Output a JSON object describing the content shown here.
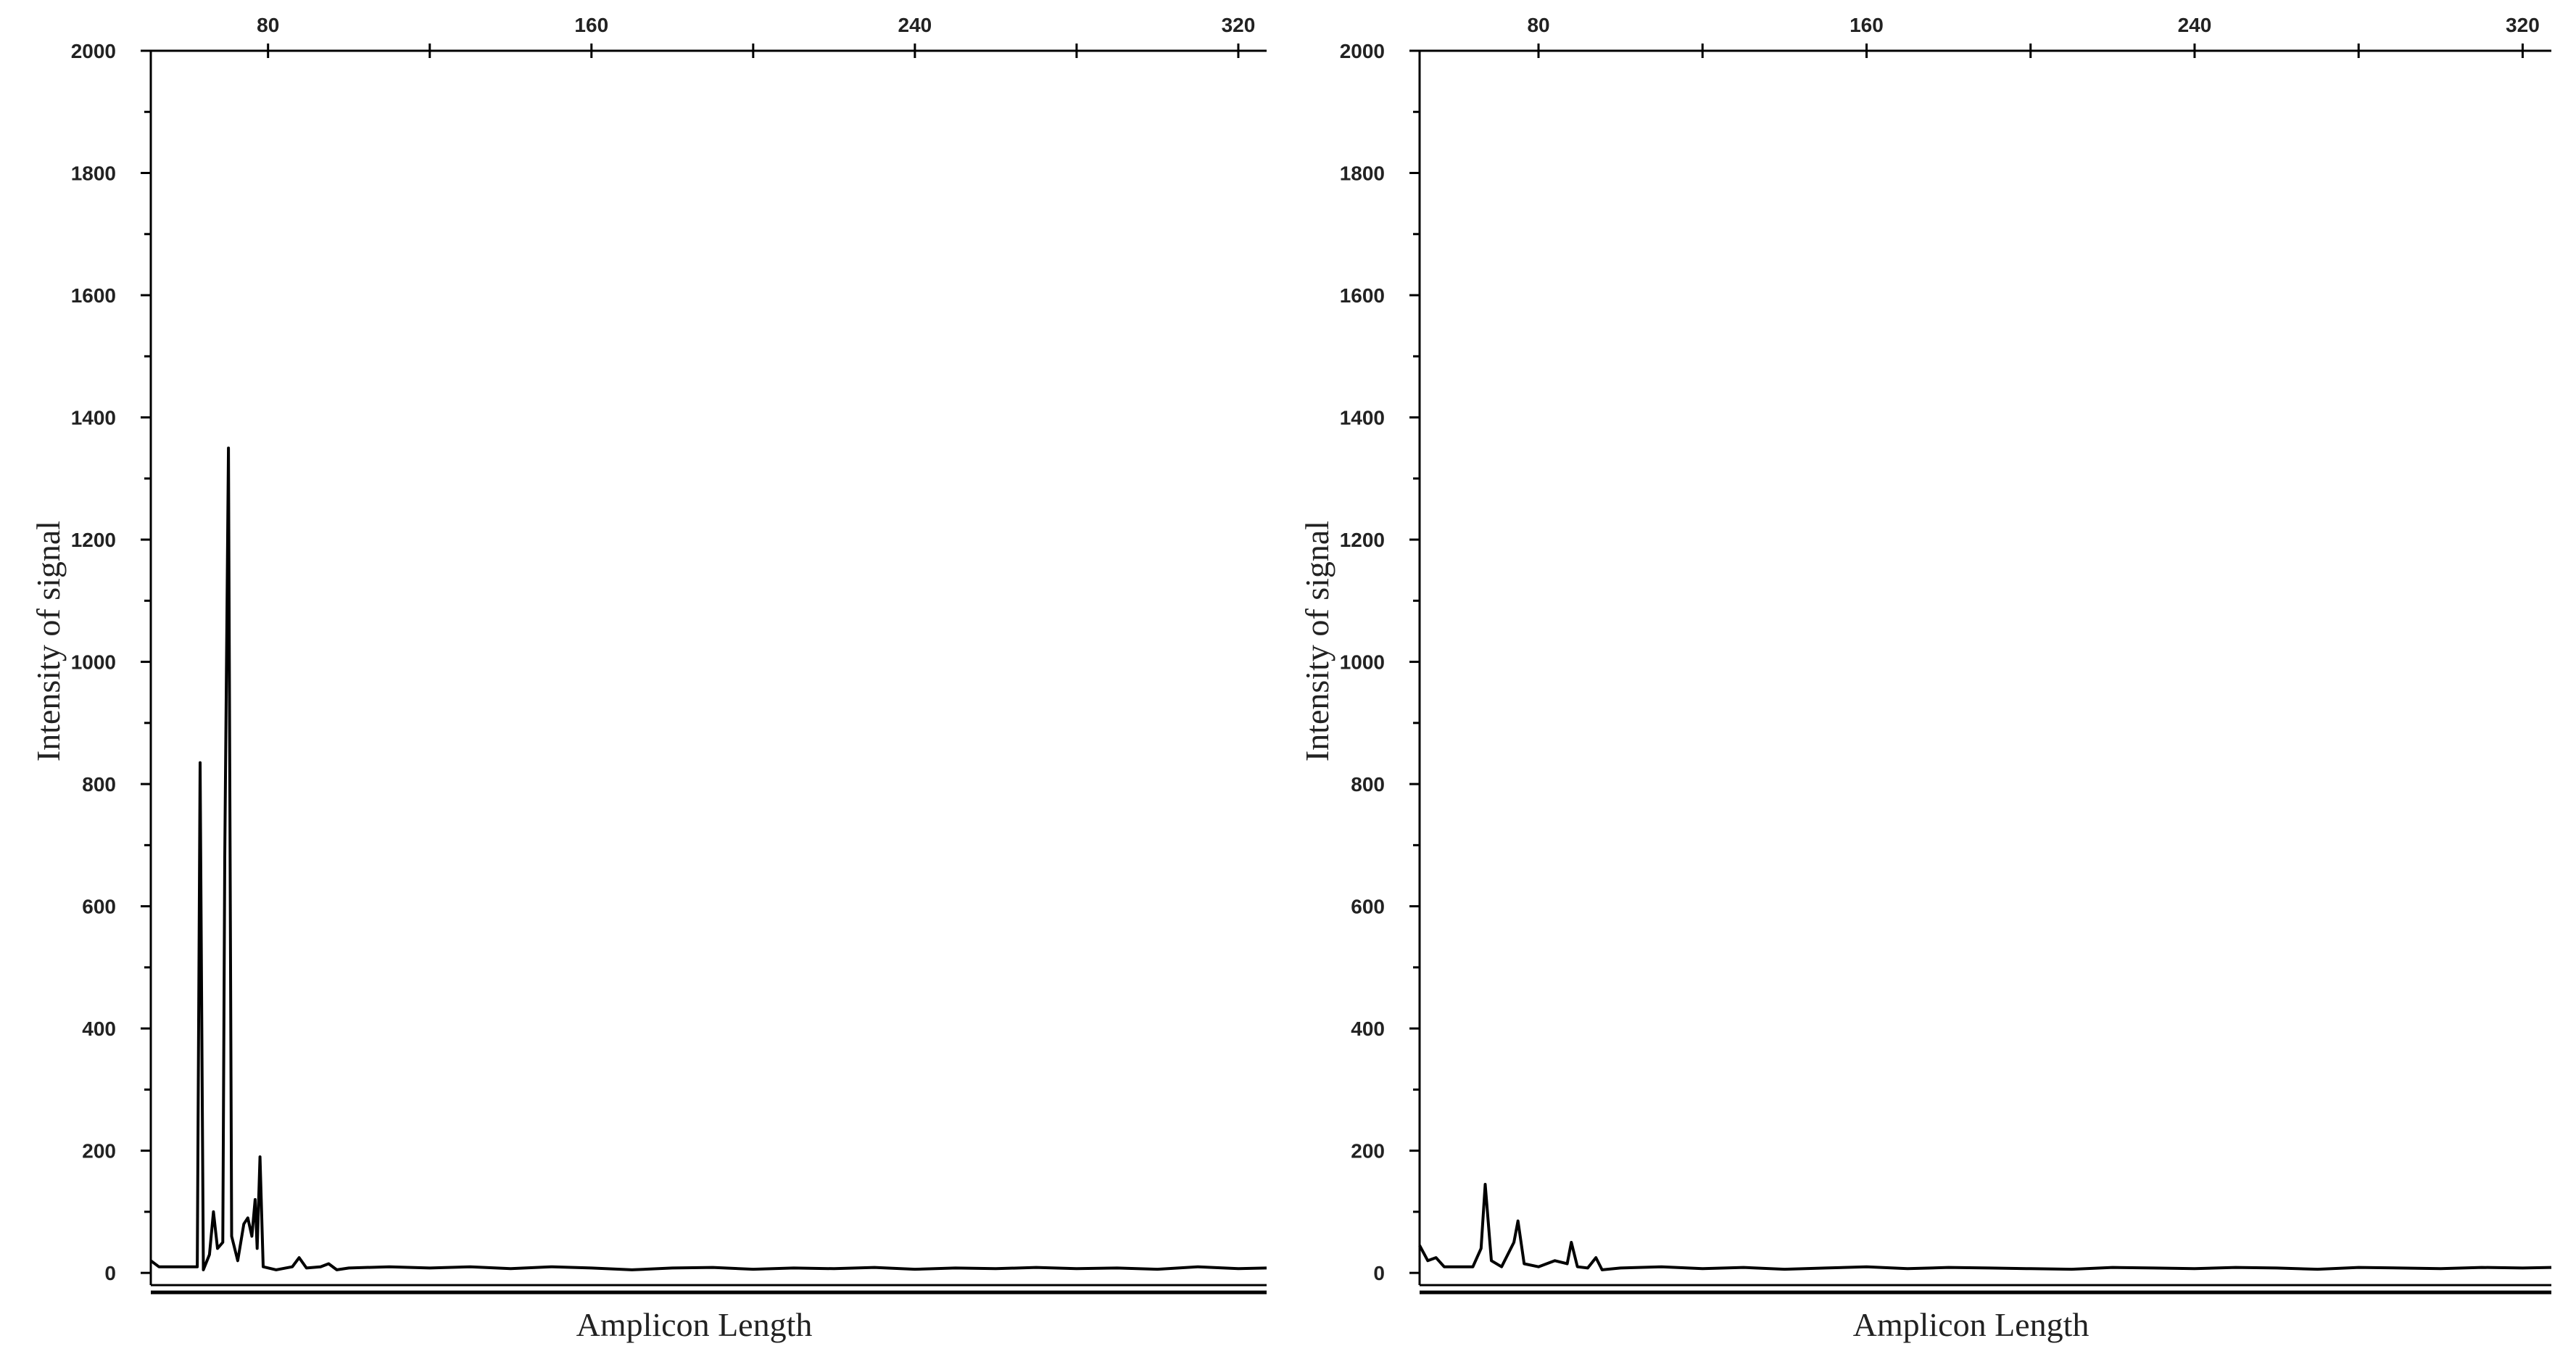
{
  "chart_data": [
    {
      "type": "line",
      "xlabel": "Amplicon Length",
      "ylabel": "Intensity of signal",
      "color": "#000000",
      "xlim": [
        51,
        327
      ],
      "xticks": [
        80,
        160,
        240,
        320
      ],
      "xminorticks": [
        120,
        200,
        280
      ],
      "ylim": [
        -20,
        2000
      ],
      "yticks": [
        0,
        200,
        400,
        600,
        800,
        1000,
        1200,
        1400,
        1600,
        1800,
        2000
      ],
      "yminorticks": [
        100,
        300,
        500,
        700,
        900,
        1100,
        1300,
        1500,
        1700,
        1900
      ],
      "x": [
        51,
        53,
        60,
        62.5,
        63.2,
        64,
        65.5,
        66.5,
        67.5,
        68.8,
        69.3,
        70.2,
        71,
        72.5,
        74,
        75,
        76,
        76.8,
        77.3,
        78,
        78.8,
        82,
        86,
        87.7,
        89.5,
        93,
        95,
        97,
        100,
        110,
        120,
        130,
        140,
        150,
        160,
        170,
        180,
        190,
        200,
        210,
        220,
        230,
        240,
        250,
        260,
        270,
        280,
        290,
        300,
        310,
        320,
        327
      ],
      "values": [
        20,
        10,
        10,
        10,
        835,
        5,
        30,
        100,
        40,
        50,
        680,
        1350,
        60,
        20,
        80,
        90,
        60,
        120,
        40,
        190,
        10,
        5,
        10,
        25,
        8,
        10,
        15,
        5,
        8,
        10,
        8,
        10,
        7,
        10,
        8,
        5,
        8,
        9,
        6,
        8,
        7,
        9,
        6,
        8,
        7,
        9,
        7,
        8,
        6,
        10,
        7,
        8
      ]
    },
    {
      "type": "line",
      "xlabel": "Amplicon Length",
      "ylabel": "Intensity of signal",
      "color": "#000000",
      "xlim": [
        51,
        327
      ],
      "xticks": [
        80,
        160,
        240,
        320
      ],
      "xminorticks": [
        120,
        200,
        280
      ],
      "ylim": [
        -20,
        2000
      ],
      "yticks": [
        0,
        200,
        400,
        600,
        800,
        1000,
        1200,
        1400,
        1600,
        1800,
        2000
      ],
      "yminorticks": [
        100,
        300,
        500,
        700,
        900,
        1100,
        1300,
        1500,
        1700,
        1900
      ],
      "x": [
        51,
        53,
        55,
        57,
        64,
        66,
        67,
        68.5,
        71,
        74,
        75,
        76.5,
        80,
        84,
        87,
        88,
        89.5,
        92,
        94,
        95.5,
        100,
        110,
        120,
        130,
        140,
        150,
        160,
        170,
        180,
        190,
        200,
        210,
        220,
        230,
        240,
        250,
        260,
        270,
        280,
        290,
        300,
        310,
        320,
        327
      ],
      "values": [
        45,
        20,
        25,
        10,
        10,
        40,
        145,
        20,
        10,
        50,
        85,
        15,
        10,
        20,
        15,
        50,
        10,
        8,
        25,
        5,
        8,
        10,
        7,
        9,
        6,
        8,
        10,
        7,
        9,
        8,
        7,
        6,
        9,
        8,
        7,
        9,
        8,
        6,
        9,
        8,
        7,
        9,
        8,
        9
      ]
    }
  ]
}
